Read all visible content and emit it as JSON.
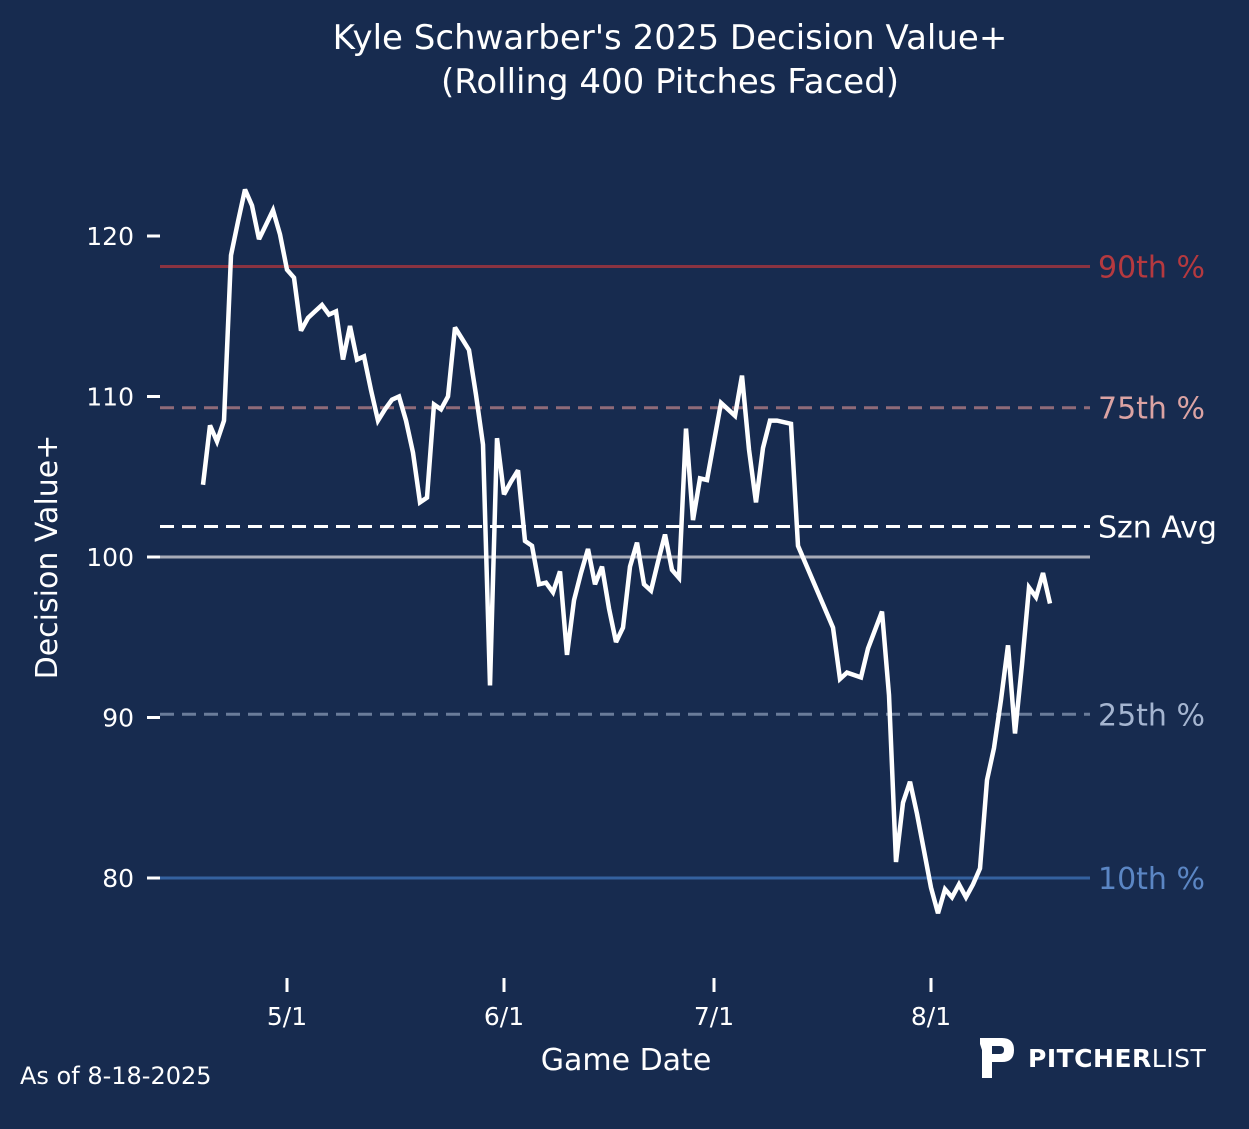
{
  "chart_data": {
    "type": "line",
    "title": "Kyle Schwarber's 2025 Decision Value+",
    "subtitle": "(Rolling 400 Pitches Faced)",
    "xlabel": "Game Date",
    "ylabel": "Decision Value+",
    "ylim": [
      74.8,
      124.5
    ],
    "xlim": [
      "2025-04-12",
      "2025-08-24"
    ],
    "grid": false,
    "x_ticks": [
      {
        "date": "2025-05-01",
        "label": "5/1"
      },
      {
        "date": "2025-06-01",
        "label": "6/1"
      },
      {
        "date": "2025-07-01",
        "label": "7/1"
      },
      {
        "date": "2025-08-01",
        "label": "8/1"
      }
    ],
    "y_ticks": [
      80,
      90,
      100,
      110,
      120
    ],
    "reference_lines": [
      {
        "label": "90th %",
        "value": 118.1,
        "style": "solid",
        "line_color": "#8a3341",
        "text_color": "#b5393f"
      },
      {
        "label": "75th %",
        "value": 109.3,
        "style": "dashed",
        "line_color": "#8f6b79",
        "text_color": "#dba3a3"
      },
      {
        "label": "Szn Avg",
        "value": 101.9,
        "style": "dashed",
        "line_color": "#ffffff",
        "text_color": "#ffffff"
      },
      {
        "label": "",
        "value": 100,
        "style": "solid",
        "line_color": "#a7abb7",
        "text_color": ""
      },
      {
        "label": "25th %",
        "value": 90.2,
        "style": "dashed",
        "line_color": "#6a7c9a",
        "text_color": "#a5b5d0"
      },
      {
        "label": "10th %",
        "value": 80,
        "style": "solid",
        "line_color": "#34619f",
        "text_color": "#5b86c4"
      }
    ],
    "series": [
      {
        "color": "#ffffff",
        "x": [
          "2025-04-19",
          "2025-04-20",
          "2025-04-21",
          "2025-04-22",
          "2025-04-23",
          "2025-04-24",
          "2025-04-25",
          "2025-04-26",
          "2025-04-27",
          "2025-04-28",
          "2025-04-29",
          "2025-04-30",
          "2025-05-01",
          "2025-05-02",
          "2025-05-03",
          "2025-05-04",
          "2025-05-05",
          "2025-05-06",
          "2025-05-07",
          "2025-05-08",
          "2025-05-09",
          "2025-05-10",
          "2025-05-11",
          "2025-05-12",
          "2025-05-13",
          "2025-05-14",
          "2025-05-15",
          "2025-05-16",
          "2025-05-17",
          "2025-05-18",
          "2025-05-19",
          "2025-05-20",
          "2025-05-21",
          "2025-05-22",
          "2025-05-23",
          "2025-05-24",
          "2025-05-25",
          "2025-05-26",
          "2025-05-27",
          "2025-05-28",
          "2025-05-29",
          "2025-05-30",
          "2025-05-31",
          "2025-06-01",
          "2025-06-02",
          "2025-06-03",
          "2025-06-04",
          "2025-06-05",
          "2025-06-06",
          "2025-06-07",
          "2025-06-08",
          "2025-06-09",
          "2025-06-10",
          "2025-06-11",
          "2025-06-12",
          "2025-06-13",
          "2025-06-14",
          "2025-06-15",
          "2025-06-16",
          "2025-06-17",
          "2025-06-18",
          "2025-06-19",
          "2025-06-20",
          "2025-06-21",
          "2025-06-22",
          "2025-06-23",
          "2025-06-24",
          "2025-06-25",
          "2025-06-26",
          "2025-06-27",
          "2025-06-28",
          "2025-06-29",
          "2025-06-30",
          "2025-07-01",
          "2025-07-02",
          "2025-07-03",
          "2025-07-04",
          "2025-07-05",
          "2025-07-06",
          "2025-07-07",
          "2025-07-08",
          "2025-07-09",
          "2025-07-10",
          "2025-07-12",
          "2025-07-13",
          "2025-07-18",
          "2025-07-19",
          "2025-07-20",
          "2025-07-22",
          "2025-07-23",
          "2025-07-25",
          "2025-07-26",
          "2025-07-27",
          "2025-07-28",
          "2025-07-29",
          "2025-07-30",
          "2025-07-31",
          "2025-08-01",
          "2025-08-02",
          "2025-08-03",
          "2025-08-04",
          "2025-08-05",
          "2025-08-06",
          "2025-08-07",
          "2025-08-08",
          "2025-08-09",
          "2025-08-10",
          "2025-08-11",
          "2025-08-12",
          "2025-08-13",
          "2025-08-14",
          "2025-08-15",
          "2025-08-16",
          "2025-08-17",
          "2025-08-18"
        ],
        "values": [
          104.5,
          108.2,
          107.2,
          108.5,
          118.8,
          120.9,
          122.9,
          121.9,
          119.8,
          120.7,
          121.6,
          120.1,
          117.9,
          117.4,
          114.1,
          114.9,
          115.3,
          115.7,
          115.1,
          115.3,
          112.3,
          114.4,
          112.3,
          112.5,
          110.4,
          108.5,
          109.2,
          109.8,
          110.0,
          108.5,
          106.5,
          103.4,
          103.7,
          109.5,
          109.2,
          110.0,
          114.3,
          113.6,
          112.9,
          110.1,
          107.0,
          92.0,
          107.4,
          103.9,
          104.7,
          105.4,
          101.0,
          100.7,
          98.3,
          98.4,
          97.8,
          99.1,
          93.9,
          97.3,
          99.0,
          100.5,
          98.3,
          99.4,
          96.8,
          94.7,
          95.6,
          99.4,
          100.9,
          98.3,
          97.9,
          99.7,
          101.4,
          99.2,
          98.7,
          108.0,
          102.3,
          104.9,
          104.8,
          107.2,
          109.6,
          109.2,
          108.8,
          111.3,
          106.7,
          103.4,
          106.8,
          108.5,
          108.5,
          108.3,
          100.7,
          95.6,
          92.4,
          92.8,
          92.5,
          94.3,
          96.6,
          91.4,
          81.0,
          84.7,
          86.0,
          84.0,
          81.7,
          79.4,
          77.8,
          79.3,
          78.8,
          79.6,
          78.8,
          79.6,
          80.6,
          86.1,
          88.1,
          91.1,
          94.5,
          89.0,
          93.3,
          98.1,
          97.5,
          99.0,
          97.1
        ]
      }
    ],
    "background_color": "#172b4f"
  },
  "footer": {
    "as_of": "As of 8-18-2025"
  },
  "logo": {
    "bold": "PITCHER",
    "light": "LIST",
    "icon": "pitcherlist-p-logo-icon"
  }
}
